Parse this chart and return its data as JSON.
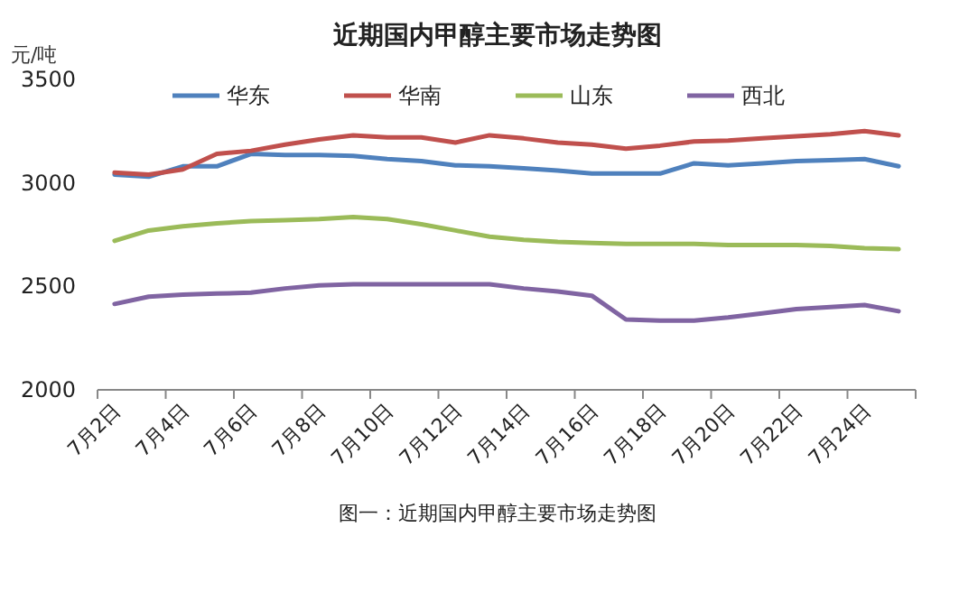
{
  "chart_data": {
    "type": "line",
    "title": "近期国内甲醇主要市场走势图",
    "ylabel": "元/吨",
    "categories": [
      "7月2日",
      null,
      "7月4日",
      null,
      "7月6日",
      null,
      "7月8日",
      null,
      "7月10日",
      null,
      "7月12日",
      null,
      "7月14日",
      null,
      "7月16日",
      null,
      "7月18日",
      null,
      "7月20日",
      null,
      "7月22日",
      null,
      "7月24日",
      null
    ],
    "series": [
      {
        "name": "华东",
        "color": "#4f81bd",
        "values": [
          3040,
          3030,
          3080,
          3080,
          3140,
          3135,
          3135,
          3130,
          3115,
          3105,
          3085,
          3080,
          3070,
          3060,
          3045,
          3045,
          3045,
          3095,
          3085,
          3095,
          3105,
          3110,
          3115,
          3080
        ]
      },
      {
        "name": "华南",
        "color": "#c0504d",
        "values": [
          3050,
          3040,
          3065,
          3140,
          3155,
          3185,
          3210,
          3230,
          3220,
          3220,
          3195,
          3230,
          3215,
          3195,
          3185,
          3165,
          3180,
          3200,
          3205,
          3215,
          3225,
          3235,
          3250,
          3230
        ]
      },
      {
        "name": "山东",
        "color": "#9bbb59",
        "values": [
          2720,
          2770,
          2790,
          2805,
          2815,
          2820,
          2825,
          2835,
          2825,
          2800,
          2770,
          2740,
          2725,
          2715,
          2710,
          2705,
          2705,
          2705,
          2700,
          2700,
          2700,
          2695,
          2685,
          2680
        ]
      },
      {
        "name": "西北",
        "color": "#8064a2",
        "values": [
          2415,
          2450,
          2460,
          2465,
          2470,
          2490,
          2505,
          2510,
          2510,
          2510,
          2510,
          2510,
          2490,
          2475,
          2455,
          2340,
          2335,
          2335,
          2350,
          2370,
          2390,
          2400,
          2410,
          2380
        ]
      }
    ],
    "ylim": [
      2000,
      3500
    ],
    "yticks": [
      2000,
      2500,
      3000,
      3500
    ],
    "grid": false,
    "legend": "top",
    "marker": "none",
    "line_style": "solid",
    "annotations": [
      "图一：近期国内甲醇主要市场走势图"
    ]
  }
}
